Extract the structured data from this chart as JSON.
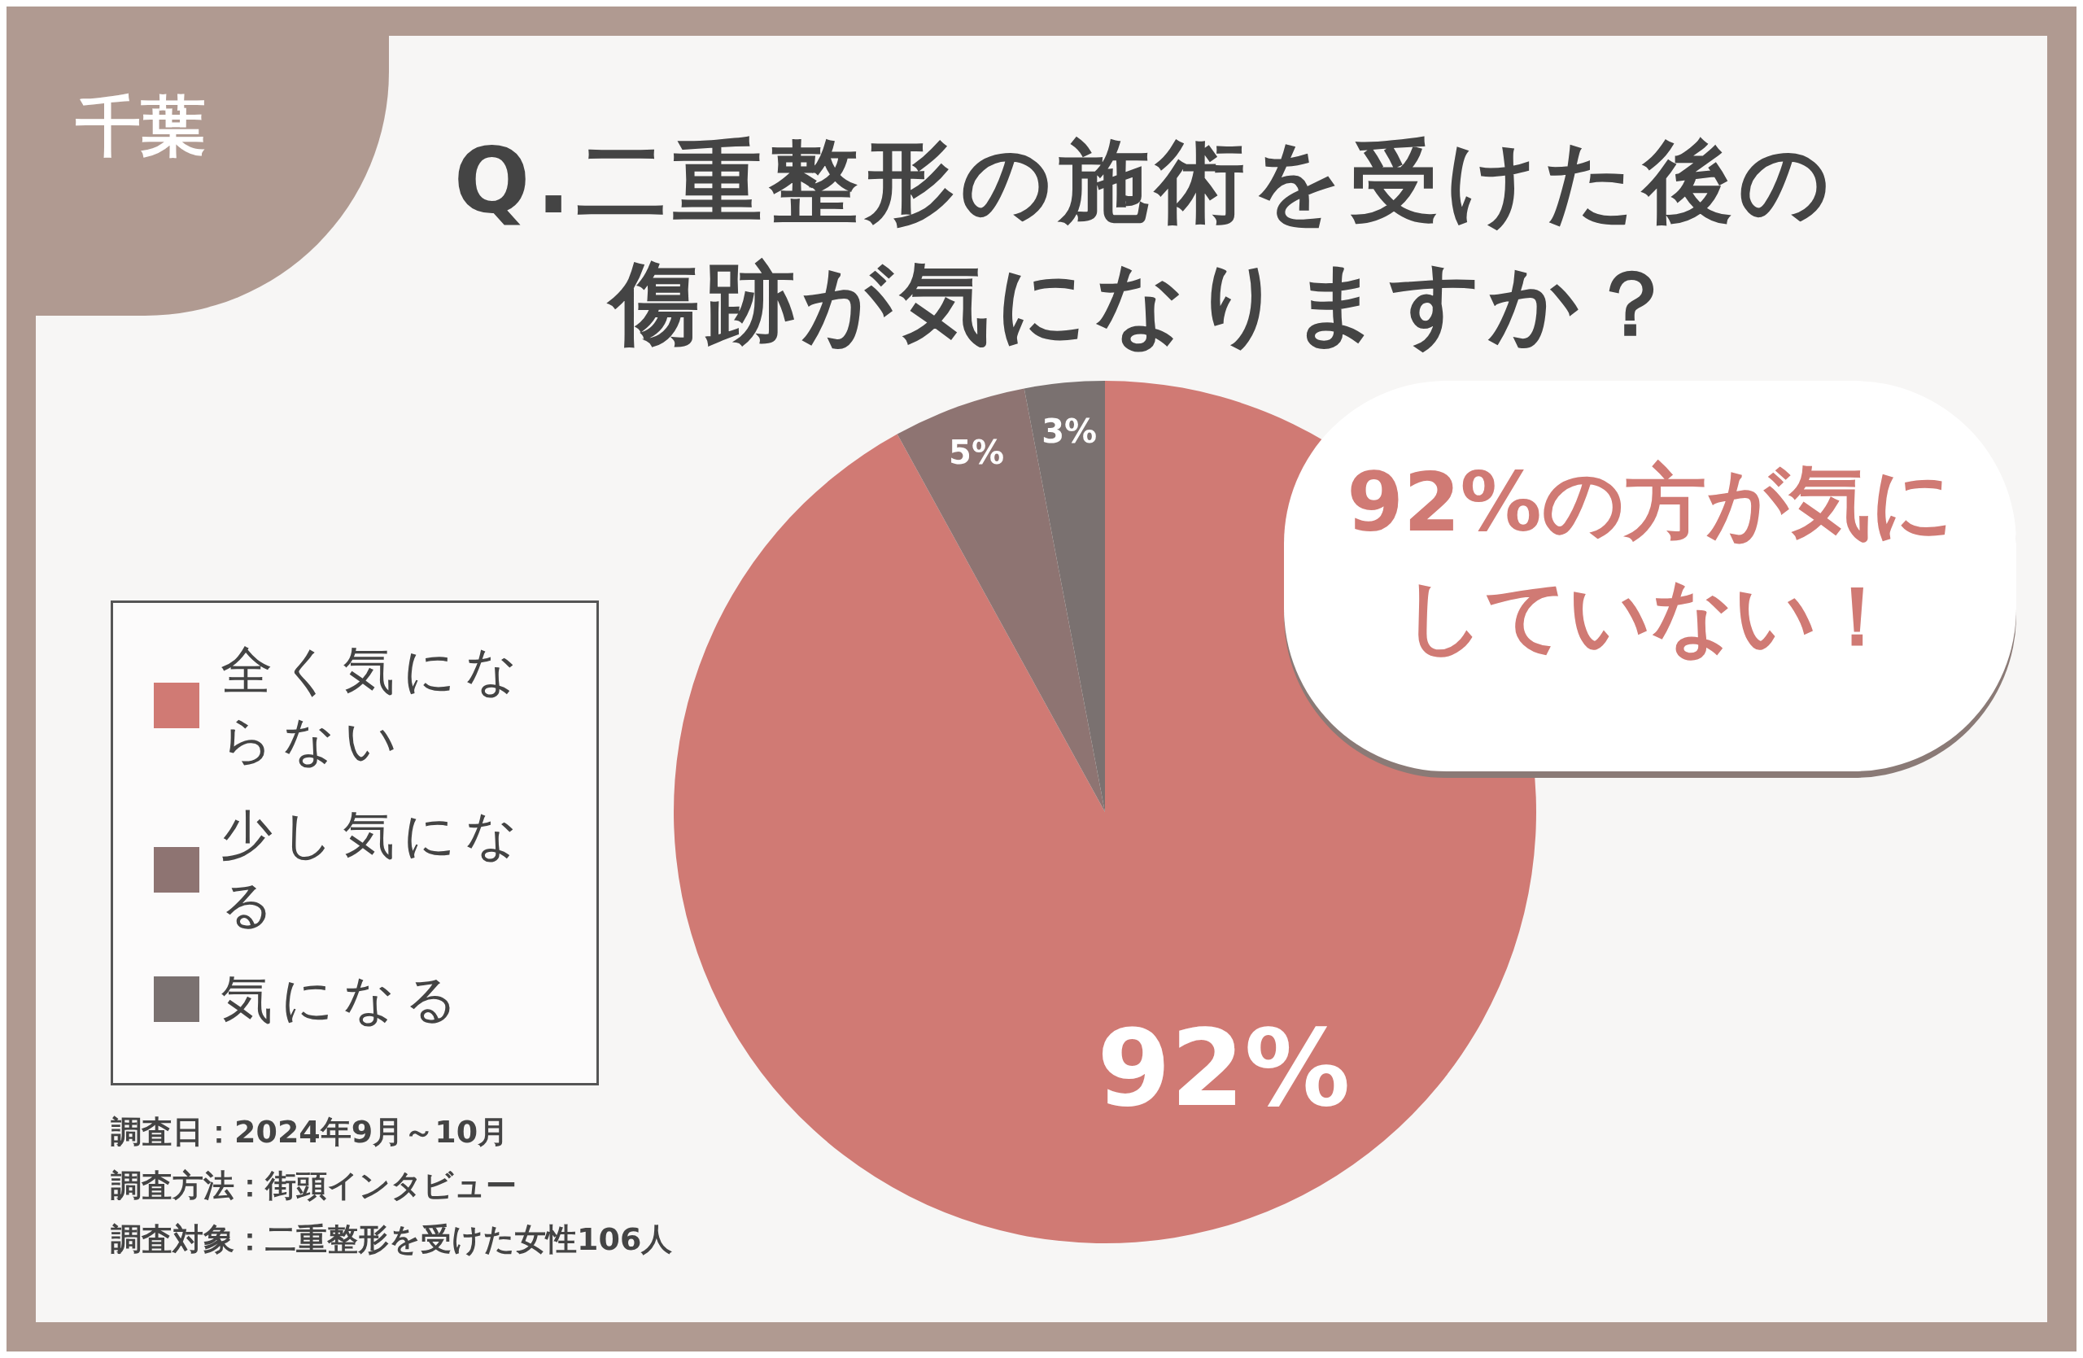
{
  "chart_data": {
    "type": "pie",
    "title": "Q.二重整形の施術を受けた後の傷跡が気になりますか？",
    "subtitle": "千葉",
    "categories": [
      "全く気にならない",
      "少し気になる",
      "気になる"
    ],
    "values": [
      92,
      5,
      3
    ],
    "colors": [
      "#d07a74",
      "#8e7472",
      "#7a7170"
    ],
    "value_labels": [
      "92%",
      "5%",
      "3%"
    ],
    "legend": "left",
    "annotations": [
      "92%の方が気にしていない！",
      "調査日：2024年9月～10月",
      "調査方法：街頭インタビュー",
      "調査対象：二重整形を受けた女性106人"
    ]
  }
}
